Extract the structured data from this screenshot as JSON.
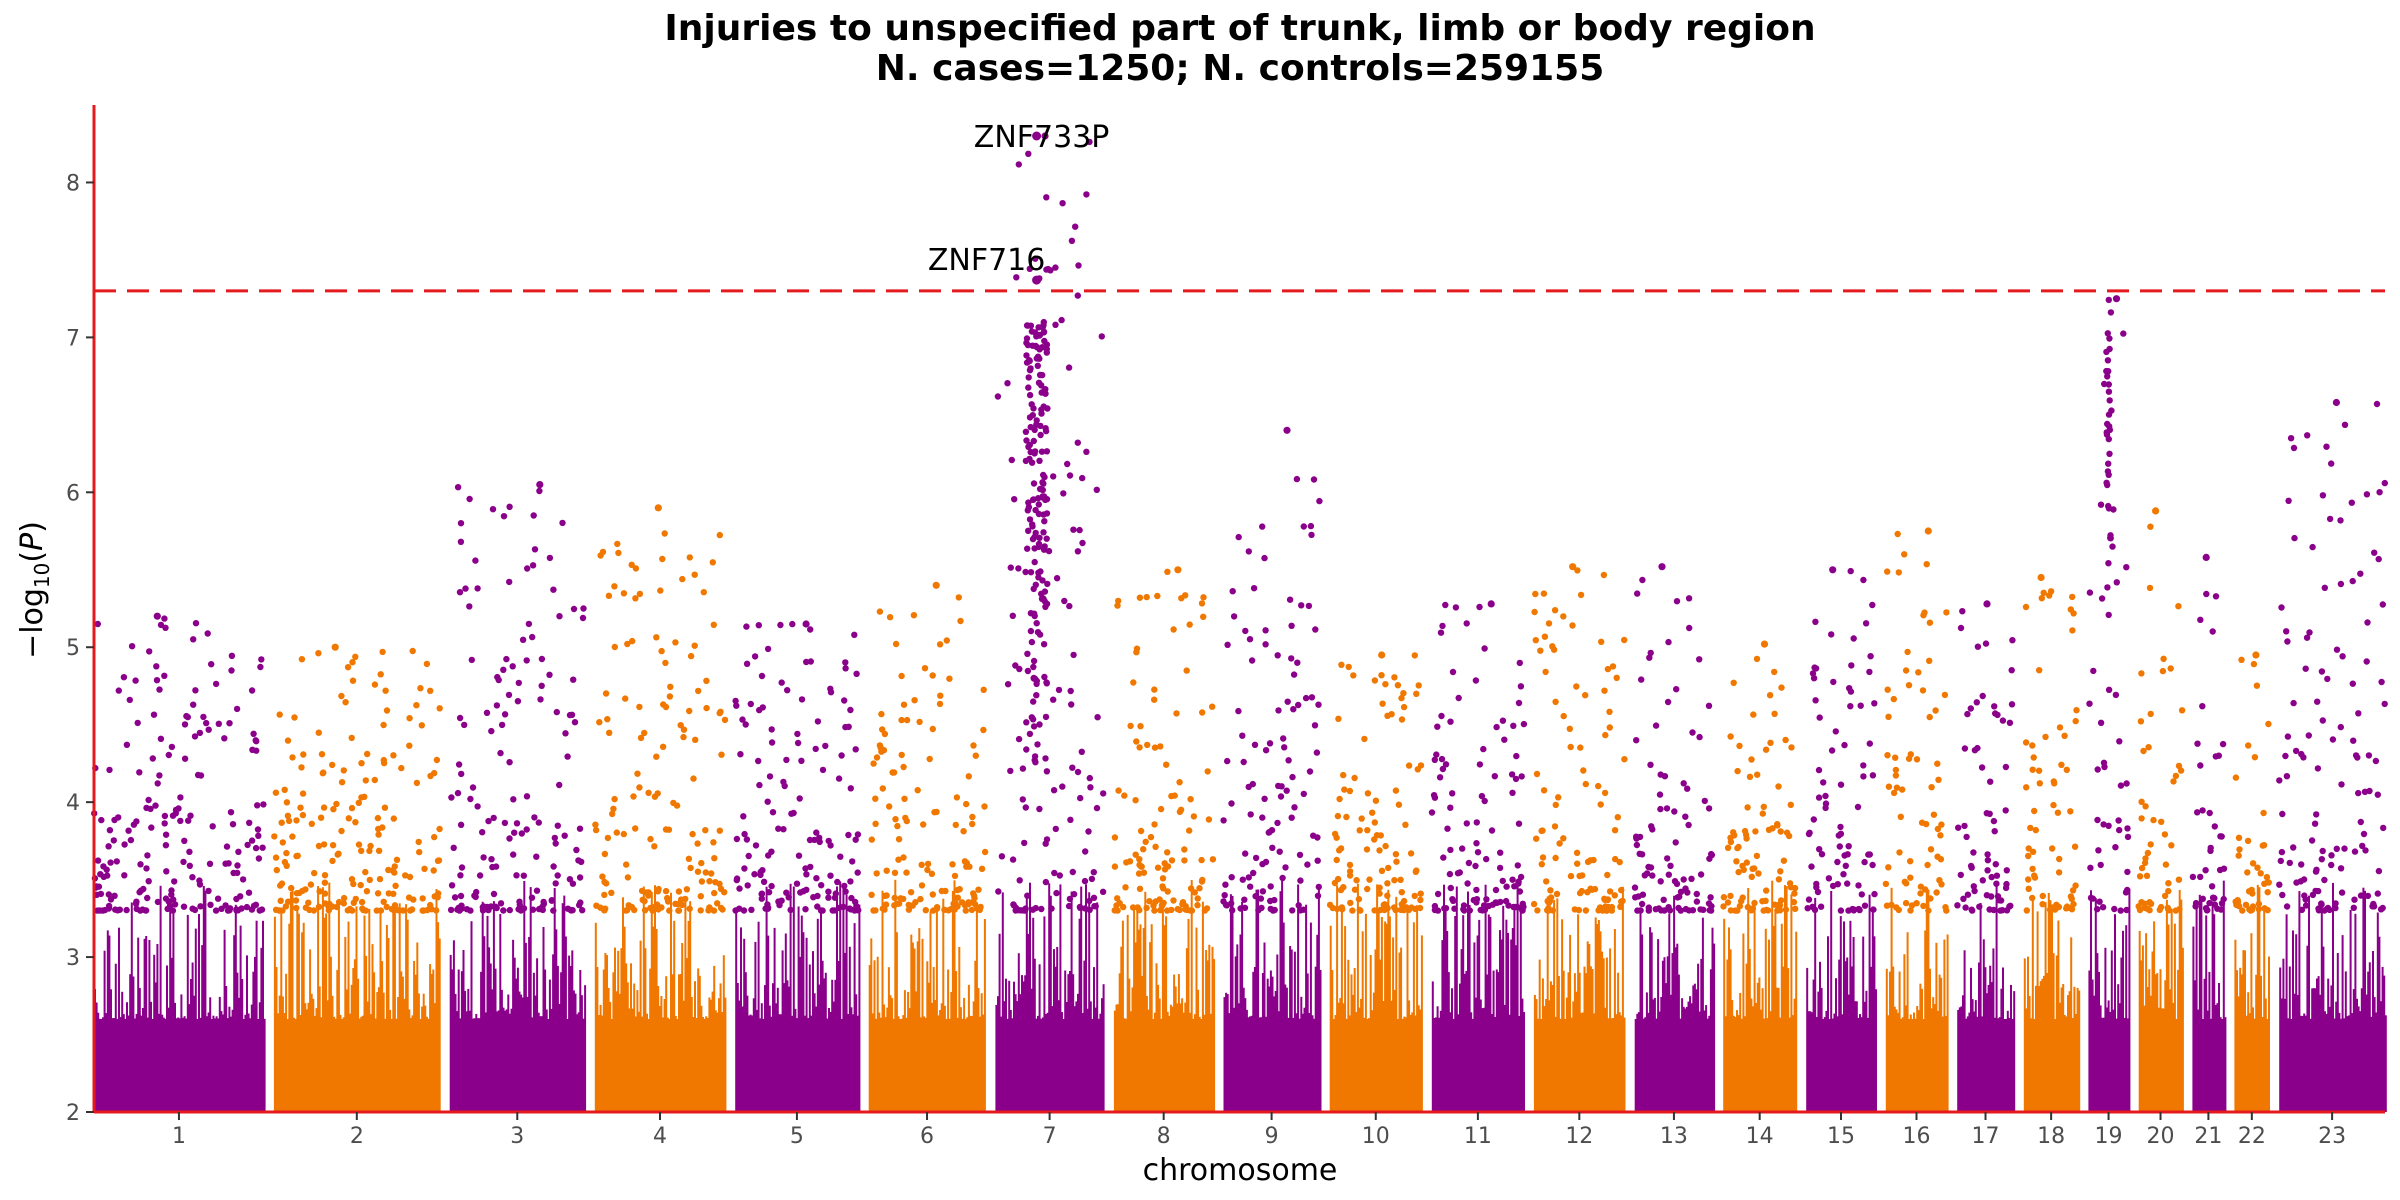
{
  "chart_data": {
    "type": "scatter",
    "subtype": "manhattan",
    "title": "Injuries to unspecified part of trunk, limb or body region",
    "subtitle": "N. cases=1250; N. controls=259155",
    "xlabel": "chromosome",
    "ylabel": "−log10(P)",
    "ylim": [
      2,
      8.5
    ],
    "y_ticks": [
      2,
      3,
      4,
      5,
      6,
      7,
      8
    ],
    "grid": false,
    "significance_line": 7.3,
    "colors": {
      "odd": "#8b008b",
      "even": "#f07800",
      "threshold": "#e41a1c",
      "axis": "#e41a1c"
    },
    "chromosomes": [
      {
        "label": "1",
        "length": 249,
        "max": 5.2
      },
      {
        "label": "2",
        "length": 243,
        "max": 5.0
      },
      {
        "label": "3",
        "length": 198,
        "max": 6.05
      },
      {
        "label": "4",
        "length": 191,
        "max": 5.9
      },
      {
        "label": "5",
        "length": 181,
        "max": 5.15
      },
      {
        "label": "6",
        "length": 171,
        "max": 5.4
      },
      {
        "label": "7",
        "length": 159,
        "max": 8.3
      },
      {
        "label": "8",
        "length": 146,
        "max": 5.5
      },
      {
        "label": "9",
        "length": 141,
        "max": 6.4
      },
      {
        "label": "10",
        "length": 135,
        "max": 4.95
      },
      {
        "label": "11",
        "length": 135,
        "max": 5.28
      },
      {
        "label": "12",
        "length": 133,
        "max": 5.52
      },
      {
        "label": "13",
        "length": 115,
        "max": 5.52
      },
      {
        "label": "14",
        "length": 107,
        "max": 5.02
      },
      {
        "label": "15",
        "length": 102,
        "max": 5.5
      },
      {
        "label": "16",
        "length": 90,
        "max": 5.75
      },
      {
        "label": "17",
        "length": 83,
        "max": 5.28
      },
      {
        "label": "18",
        "length": 80,
        "max": 5.45
      },
      {
        "label": "19",
        "length": 59,
        "max": 7.25
      },
      {
        "label": "20",
        "length": 64,
        "max": 5.88
      },
      {
        "label": "21",
        "length": 47,
        "max": 5.58
      },
      {
        "label": "22",
        "length": 51,
        "max": 4.95
      },
      {
        "label": "23",
        "length": 155,
        "max": 6.58
      }
    ],
    "annotations": [
      {
        "label": "ZNF733P",
        "chromosome": "7",
        "y": 8.3
      },
      {
        "label": "ZNF716",
        "chromosome": "7",
        "y": 7.37
      }
    ]
  }
}
